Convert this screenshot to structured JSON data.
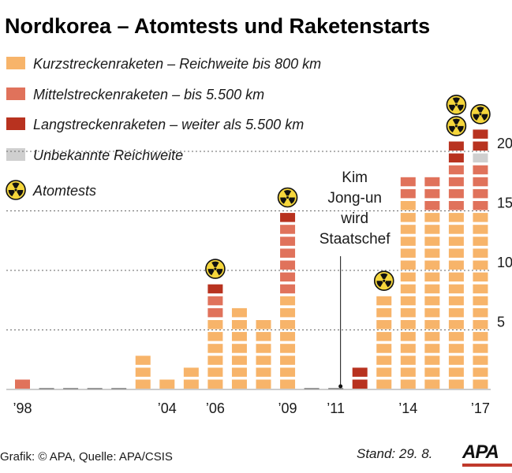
{
  "title": "Nordkorea – Atomtests und Raketenstarts",
  "colors": {
    "kurz": "#f7b46a",
    "mittel": "#e0725b",
    "lang": "#b8321f",
    "unbekannt": "#cfcfcf",
    "nuclear_fill": "#f5d63c",
    "baseline": "#999999",
    "grid": "#666666"
  },
  "legend": [
    {
      "key": "kurz",
      "label": "Kurzstreckenraketen – Reichweite bis 800 km"
    },
    {
      "key": "mittel",
      "label": "Mittelstreckenraketen – bis 5.500 km"
    },
    {
      "key": "lang",
      "label": "Langstreckenraketen – weiter als 5.500 km"
    },
    {
      "key": "unbekannt",
      "label": "Unbekannte Reichweite"
    },
    {
      "key": "atomtest",
      "label": "Atomtests",
      "icon": "radiation-icon"
    }
  ],
  "annotation": {
    "lines": [
      "Kim",
      "Jong-un",
      "wird",
      "Staatschef"
    ],
    "year": 2011
  },
  "chart_data": {
    "type": "bar",
    "stacked": true,
    "unit_blocks": true,
    "categories": [
      "1998",
      "1999",
      "2000",
      "2001",
      "2002",
      "2003",
      "2004",
      "2005",
      "2006",
      "2007",
      "2008",
      "2009",
      "2010",
      "2011",
      "2012",
      "2013",
      "2014",
      "2015",
      "2016",
      "2017"
    ],
    "series": [
      {
        "key": "kurz",
        "name": "Kurzstreckenraketen – Reichweite bis 800 km",
        "values": [
          0,
          0,
          0,
          0,
          0,
          3,
          1,
          2,
          6,
          7,
          6,
          8,
          0,
          0,
          0,
          8,
          16,
          15,
          15,
          15
        ]
      },
      {
        "key": "mittel",
        "name": "Mittelstreckenraketen – bis 5.500 km",
        "values": [
          1,
          0,
          0,
          0,
          0,
          0,
          0,
          0,
          2,
          0,
          0,
          6,
          0,
          0,
          0,
          0,
          2,
          3,
          4,
          4
        ]
      },
      {
        "key": "unbekannt",
        "name": "Unbekannte Reichweite",
        "values": [
          0,
          0,
          0,
          0,
          0,
          0,
          0,
          0,
          0,
          0,
          0,
          0,
          0,
          0,
          0,
          0,
          0,
          0,
          0,
          1
        ]
      },
      {
        "key": "lang",
        "name": "Langstreckenraketen – weiter als 5.500 km",
        "values": [
          0,
          0,
          0,
          0,
          0,
          0,
          0,
          0,
          1,
          0,
          0,
          1,
          0,
          0,
          2,
          0,
          0,
          0,
          2,
          2
        ]
      }
    ],
    "atomtests": {
      "2006": 1,
      "2009": 1,
      "2013": 1,
      "2016": 2,
      "2017": 1
    },
    "x_tick_labels": [
      {
        "year": "1998",
        "label": "’98"
      },
      {
        "year": "2004",
        "label": "’04"
      },
      {
        "year": "2006",
        "label": "’06"
      },
      {
        "year": "2009",
        "label": "’09"
      },
      {
        "year": "2011",
        "label": "’11"
      },
      {
        "year": "2014",
        "label": "’14"
      },
      {
        "year": "2017",
        "label": "’17"
      }
    ],
    "y_ticks": [
      5,
      10,
      15,
      20
    ],
    "ylim": [
      0,
      22
    ],
    "grid": "dashed horizontal",
    "y_axis_side": "right",
    "legend_position": "top-left"
  },
  "footer": {
    "source": "Grafik: © APA, Quelle: APA/CSIS",
    "stand": "Stand: 29. 8.",
    "logo": "APA"
  }
}
